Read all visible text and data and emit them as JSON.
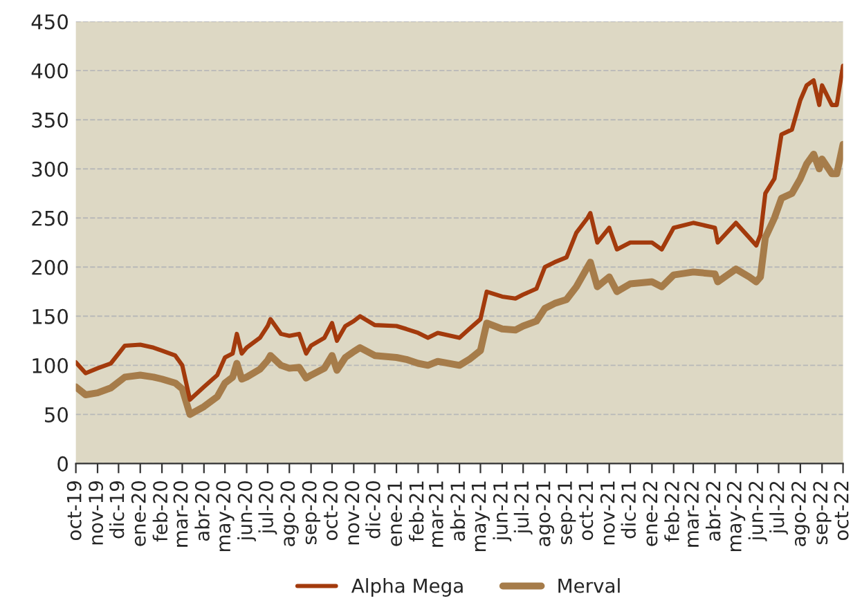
{
  "chart_data": {
    "type": "line",
    "x": [
      "2019-10-01",
      "2019-10-15",
      "2019-11-01",
      "2019-11-20",
      "2019-12-10",
      "2020-01-01",
      "2020-01-20",
      "2020-02-01",
      "2020-02-20",
      "2020-03-01",
      "2020-03-12",
      "2020-04-01",
      "2020-04-20",
      "2020-05-01",
      "2020-05-12",
      "2020-05-18",
      "2020-05-25",
      "2020-06-01",
      "2020-06-20",
      "2020-07-01",
      "2020-07-05",
      "2020-07-20",
      "2020-08-01",
      "2020-08-15",
      "2020-08-25",
      "2020-09-01",
      "2020-09-20",
      "2020-10-01",
      "2020-10-08",
      "2020-10-20",
      "2020-11-01",
      "2020-11-10",
      "2020-12-01",
      "2021-01-01",
      "2021-01-15",
      "2021-02-01",
      "2021-02-15",
      "2021-03-01",
      "2021-04-01",
      "2021-04-15",
      "2021-05-01",
      "2021-05-10",
      "2021-06-01",
      "2021-06-20",
      "2021-07-01",
      "2021-07-20",
      "2021-08-01",
      "2021-08-15",
      "2021-09-01",
      "2021-09-15",
      "2021-10-01",
      "2021-10-05",
      "2021-10-15",
      "2021-11-01",
      "2021-11-12",
      "2021-12-01",
      "2022-01-01",
      "2022-01-15",
      "2022-02-01",
      "2022-03-01",
      "2022-04-01",
      "2022-04-05",
      "2022-05-01",
      "2022-05-20",
      "2022-05-30",
      "2022-06-05",
      "2022-06-12",
      "2022-06-25",
      "2022-07-05",
      "2022-07-20",
      "2022-08-01",
      "2022-08-10",
      "2022-08-20",
      "2022-08-28",
      "2022-09-01",
      "2022-09-15",
      "2022-09-22",
      "2022-10-01"
    ],
    "series": [
      {
        "name": "Alpha Mega",
        "color": "#a33a0c",
        "values": [
          103,
          92,
          97,
          102,
          120,
          121,
          118,
          115,
          110,
          100,
          65,
          78,
          90,
          108,
          112,
          132,
          112,
          118,
          128,
          140,
          147,
          132,
          130,
          132,
          112,
          120,
          128,
          143,
          125,
          140,
          145,
          150,
          141,
          140,
          137,
          133,
          128,
          133,
          128,
          137,
          147,
          175,
          170,
          168,
          172,
          178,
          200,
          205,
          210,
          235,
          250,
          255,
          225,
          240,
          218,
          225,
          225,
          218,
          240,
          245,
          240,
          225,
          245,
          230,
          222,
          233,
          275,
          290,
          335,
          340,
          370,
          385,
          390,
          365,
          385,
          365,
          365,
          405
        ]
      },
      {
        "name": "Merval",
        "color": "#a67c4a",
        "values": [
          78,
          70,
          72,
          77,
          88,
          90,
          88,
          86,
          82,
          76,
          50,
          58,
          68,
          82,
          88,
          102,
          86,
          88,
          96,
          105,
          110,
          100,
          97,
          98,
          87,
          90,
          97,
          110,
          95,
          108,
          114,
          118,
          110,
          108,
          106,
          102,
          100,
          104,
          100,
          106,
          115,
          143,
          137,
          136,
          140,
          145,
          158,
          163,
          167,
          180,
          200,
          205,
          180,
          190,
          175,
          183,
          185,
          180,
          192,
          195,
          193,
          185,
          198,
          190,
          185,
          190,
          230,
          250,
          270,
          275,
          290,
          305,
          315,
          300,
          310,
          295,
          295,
          325
        ]
      }
    ],
    "xlim": [
      "2019-10-01",
      "2022-10-01"
    ],
    "xticks": [
      {
        "value": "2019-10-01",
        "label": "oct-19"
      },
      {
        "value": "2019-11-01",
        "label": "nov-19"
      },
      {
        "value": "2019-12-01",
        "label": "dic-19"
      },
      {
        "value": "2020-01-01",
        "label": "ene-20"
      },
      {
        "value": "2020-02-01",
        "label": "feb-20"
      },
      {
        "value": "2020-03-01",
        "label": "mar-20"
      },
      {
        "value": "2020-04-01",
        "label": "abr-20"
      },
      {
        "value": "2020-05-01",
        "label": "may-20"
      },
      {
        "value": "2020-06-01",
        "label": "jun-20"
      },
      {
        "value": "2020-07-01",
        "label": "jul-20"
      },
      {
        "value": "2020-08-01",
        "label": "ago-20"
      },
      {
        "value": "2020-09-01",
        "label": "sep-20"
      },
      {
        "value": "2020-10-01",
        "label": "oct-20"
      },
      {
        "value": "2020-11-01",
        "label": "nov-20"
      },
      {
        "value": "2020-12-01",
        "label": "dic-20"
      },
      {
        "value": "2021-01-01",
        "label": "ene-21"
      },
      {
        "value": "2021-02-01",
        "label": "feb-21"
      },
      {
        "value": "2021-03-01",
        "label": "mar-21"
      },
      {
        "value": "2021-04-01",
        "label": "abr-21"
      },
      {
        "value": "2021-05-01",
        "label": "may-21"
      },
      {
        "value": "2021-06-01",
        "label": "jun-21"
      },
      {
        "value": "2021-07-01",
        "label": "jul-21"
      },
      {
        "value": "2021-08-01",
        "label": "ago-21"
      },
      {
        "value": "2021-09-01",
        "label": "sep-21"
      },
      {
        "value": "2021-10-01",
        "label": "oct-21"
      },
      {
        "value": "2021-11-01",
        "label": "nov-21"
      },
      {
        "value": "2021-12-01",
        "label": "dic-21"
      },
      {
        "value": "2022-01-01",
        "label": "ene-22"
      },
      {
        "value": "2022-02-01",
        "label": "feb-22"
      },
      {
        "value": "2022-03-01",
        "label": "mar-22"
      },
      {
        "value": "2022-04-01",
        "label": "abr-22"
      },
      {
        "value": "2022-05-01",
        "label": "may-22"
      },
      {
        "value": "2022-06-01",
        "label": "jun-22"
      },
      {
        "value": "2022-07-01",
        "label": "jul-22"
      },
      {
        "value": "2022-08-01",
        "label": "ago-22"
      },
      {
        "value": "2022-09-01",
        "label": "sep-22"
      },
      {
        "value": "2022-10-01",
        "label": "oct-22"
      }
    ],
    "ylim": [
      0,
      450
    ],
    "yticks": [
      0,
      50,
      100,
      150,
      200,
      250,
      300,
      350,
      400,
      450
    ],
    "grid": "y",
    "legend": "bottom",
    "marker": "none",
    "line_style": "solid"
  }
}
